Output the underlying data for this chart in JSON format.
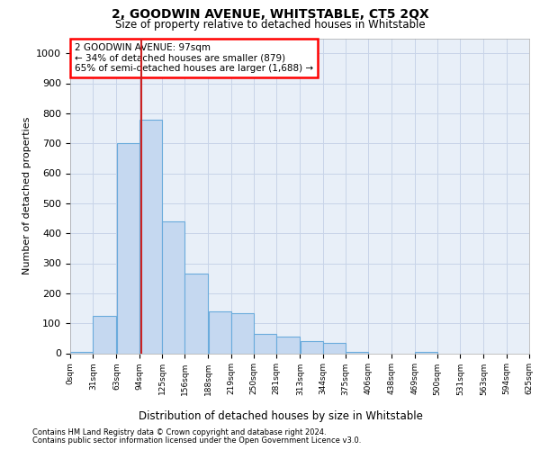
{
  "title": "2, GOODWIN AVENUE, WHITSTABLE, CT5 2QX",
  "subtitle": "Size of property relative to detached houses in Whitstable",
  "xlabel": "Distribution of detached houses by size in Whitstable",
  "ylabel": "Number of detached properties",
  "footer_line1": "Contains HM Land Registry data © Crown copyright and database right 2024.",
  "footer_line2": "Contains public sector information licensed under the Open Government Licence v3.0.",
  "annotation_line1": "2 GOODWIN AVENUE: 97sqm",
  "annotation_line2": "← 34% of detached houses are smaller (879)",
  "annotation_line3": "65% of semi-detached houses are larger (1,688) →",
  "property_size": 97,
  "bar_left_edges": [
    0,
    31,
    63,
    94,
    125,
    156,
    188,
    219,
    250,
    281,
    313,
    344,
    375,
    406,
    438,
    469,
    500,
    531,
    563,
    594
  ],
  "bar_widths": [
    31,
    32,
    31,
    31,
    31,
    32,
    31,
    31,
    31,
    32,
    31,
    31,
    31,
    32,
    31,
    31,
    31,
    32,
    31,
    31
  ],
  "bar_heights": [
    5,
    125,
    700,
    780,
    440,
    265,
    140,
    135,
    65,
    55,
    40,
    35,
    5,
    0,
    0,
    5,
    0,
    0,
    0,
    0
  ],
  "bar_color": "#c5d8f0",
  "bar_edge_color": "#6aabdc",
  "vline_x": 97,
  "vline_color": "#cc2222",
  "grid_color": "#c8d4e8",
  "bg_color": "#e8eff8",
  "ylim": [
    0,
    1050
  ],
  "yticks": [
    0,
    100,
    200,
    300,
    400,
    500,
    600,
    700,
    800,
    900,
    1000
  ],
  "xlim": [
    0,
    625
  ],
  "xtick_labels": [
    "0sqm",
    "31sqm",
    "63sqm",
    "94sqm",
    "125sqm",
    "156sqm",
    "188sqm",
    "219sqm",
    "250sqm",
    "281sqm",
    "313sqm",
    "344sqm",
    "375sqm",
    "406sqm",
    "438sqm",
    "469sqm",
    "500sqm",
    "531sqm",
    "563sqm",
    "594sqm",
    "625sqm"
  ],
  "xtick_positions": [
    0,
    31,
    63,
    94,
    125,
    156,
    188,
    219,
    250,
    281,
    313,
    344,
    375,
    406,
    438,
    469,
    500,
    531,
    563,
    594,
    625
  ]
}
